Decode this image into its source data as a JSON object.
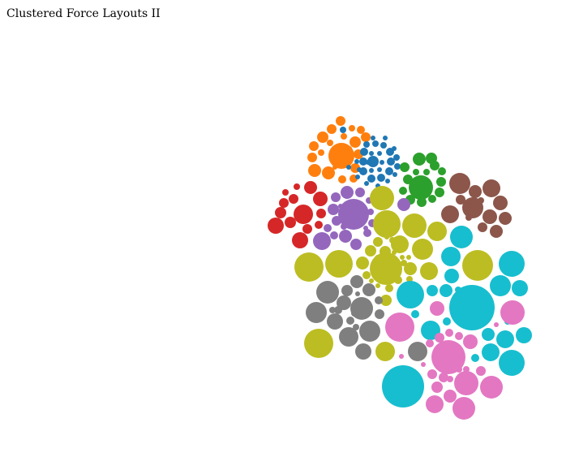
{
  "page": {
    "title": "Clustered Force Layouts II"
  },
  "palette": {
    "orange": "#ff7f0e",
    "blue": "#1f77b4",
    "green": "#2ca02c",
    "brown": "#8c564b",
    "red": "#d62728",
    "purple": "#9467bd",
    "olive": "#bcbd22",
    "gray": "#7f7f7f",
    "cyan": "#17becf",
    "pink": "#e377c2"
  },
  "clusters": [
    {
      "name": "orange",
      "count": 21
    },
    {
      "name": "blue",
      "count": 32
    },
    {
      "name": "green",
      "count": 16
    },
    {
      "name": "brown",
      "count": 13
    },
    {
      "name": "red",
      "count": 14
    },
    {
      "name": "purple",
      "count": 19
    },
    {
      "name": "olive",
      "count": 33
    },
    {
      "name": "gray",
      "count": 20
    },
    {
      "name": "cyan",
      "count": 22
    },
    {
      "name": "pink",
      "count": 25
    }
  ]
}
